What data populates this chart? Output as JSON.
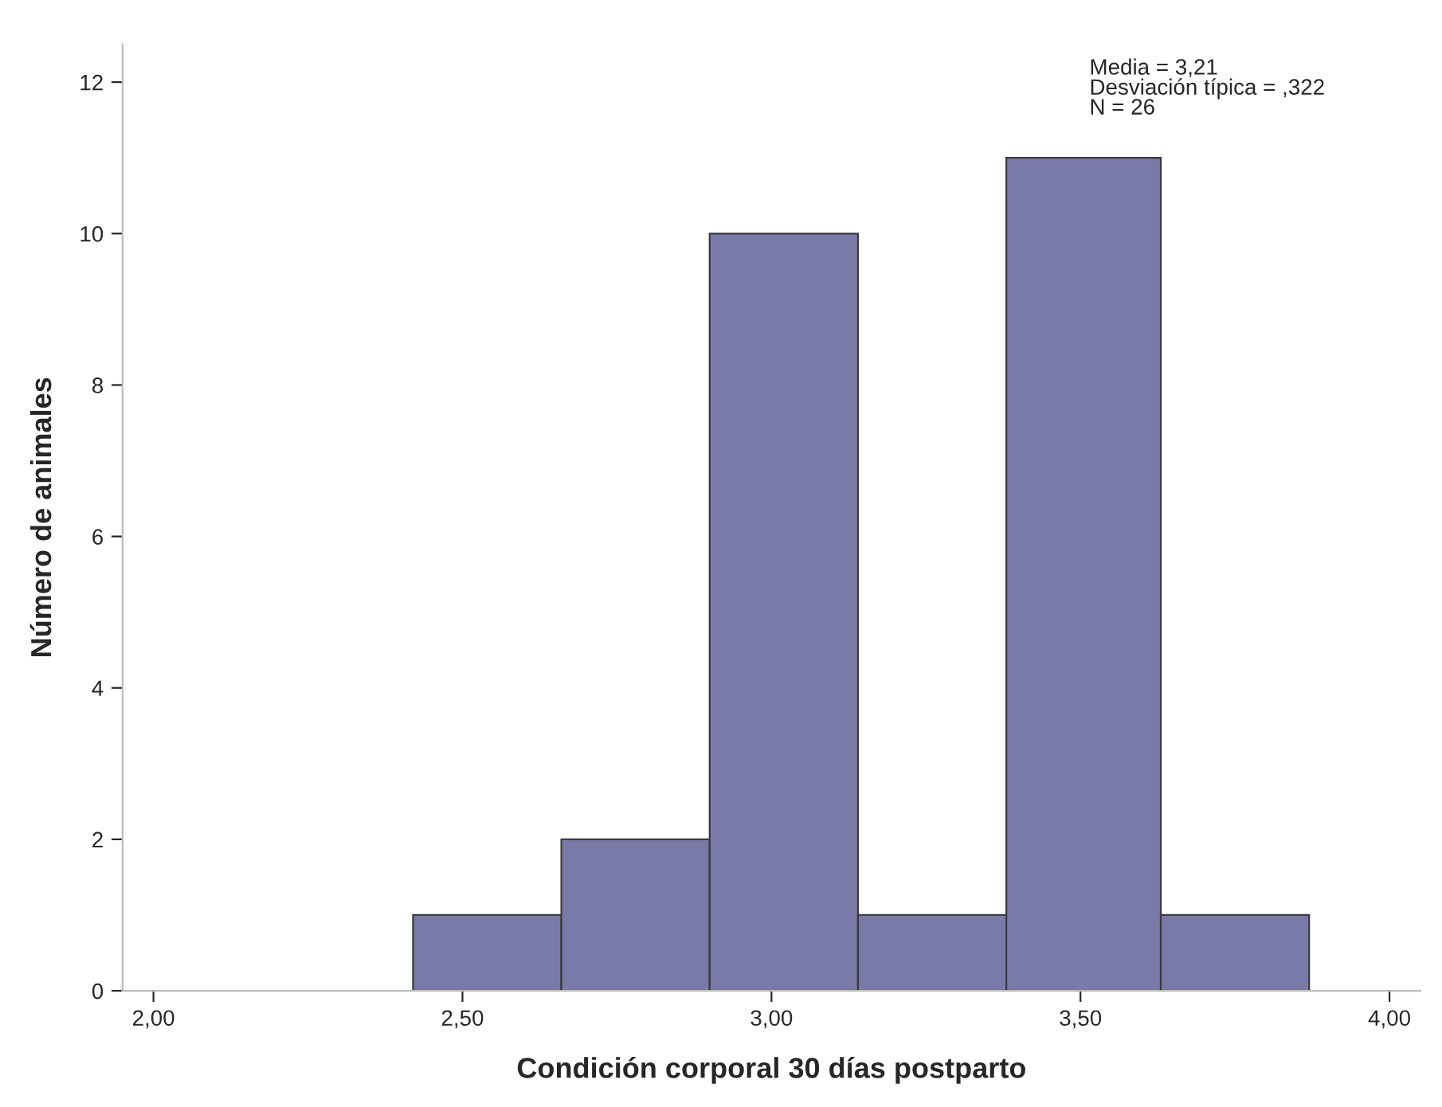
{
  "chart_data": {
    "type": "histogram",
    "xlabel": "Condición corporal 30 días postparto",
    "ylabel": "Número de animales",
    "bins": [
      2.42,
      2.66,
      2.9,
      3.14,
      3.38,
      3.63,
      3.87
    ],
    "values": [
      1,
      2,
      10,
      1,
      11,
      1
    ],
    "color": "#7a7aa8",
    "xlim": [
      1.95,
      4.05
    ],
    "ylim": [
      0,
      12.5
    ],
    "xticks": [
      {
        "value": 2.0,
        "label": "2,00"
      },
      {
        "value": 2.5,
        "label": "2,50"
      },
      {
        "value": 3.0,
        "label": "3,00"
      },
      {
        "value": 3.5,
        "label": "3,50"
      },
      {
        "value": 4.0,
        "label": "4,00"
      }
    ],
    "yticks": [
      0,
      2,
      4,
      6,
      8,
      10,
      12
    ],
    "annotations": [
      "Media = 3,21\nDesviación típica = ,322\nN = 26"
    ],
    "grid": false
  }
}
